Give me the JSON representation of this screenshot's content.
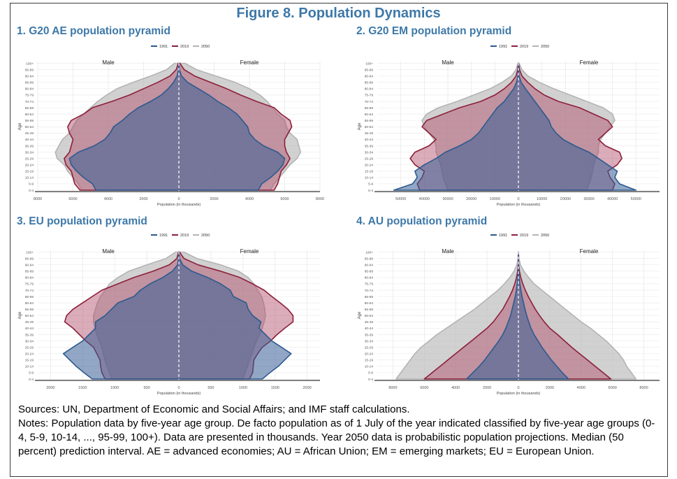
{
  "figure_title": "Figure 8. Population Dynamics",
  "colors": {
    "title": "#3d78a8",
    "y1991": "#2e5a8f",
    "y2019": "#8c1f3a",
    "y2050": "#b4b4b4"
  },
  "chart_data": [
    {
      "type": "area",
      "panel_title": "1. G20 AE population pyramid",
      "legend": [
        "1991",
        "2019",
        "2050"
      ],
      "male_label": "Male",
      "female_label": "Female",
      "xlabel": "Population (in thousands)",
      "ylabel": "Age",
      "age_groups": [
        "0-4",
        "5-9",
        "10-14",
        "15-19",
        "20-24",
        "25-29",
        "30-34",
        "35-39",
        "40-44",
        "45-49",
        "50-54",
        "55-59",
        "60-64",
        "65-69",
        "70-74",
        "75-79",
        "80-84",
        "85-89",
        "90-94",
        "95-99",
        "100+"
      ],
      "xlim": [
        -8000,
        8000
      ],
      "xticks": [
        "8000",
        "6000",
        "4000",
        "2000",
        "0",
        "2000",
        "4000",
        "6000",
        "8000"
      ],
      "xtick_values": [
        -8000,
        -6000,
        -4000,
        -2000,
        0,
        2000,
        4000,
        6000,
        8000
      ],
      "series": [
        {
          "name": "2050",
          "male": [
            5500,
            5700,
            6000,
            6300,
            6500,
            6900,
            7000,
            6800,
            6600,
            6200,
            6000,
            5800,
            5400,
            5000,
            4600,
            4100,
            3500,
            2600,
            1600,
            700,
            250
          ],
          "female": [
            5200,
            5400,
            5700,
            6000,
            6300,
            6700,
            6900,
            6800,
            6700,
            6300,
            6100,
            6000,
            5600,
            5300,
            5000,
            4600,
            4000,
            3200,
            2100,
            1000,
            350
          ]
        },
        {
          "name": "2019",
          "male": [
            5600,
            5900,
            6000,
            6100,
            6400,
            6500,
            6200,
            6100,
            6000,
            6200,
            6300,
            6100,
            5400,
            4900,
            3800,
            2800,
            2000,
            1200,
            500,
            150,
            30
          ],
          "female": [
            5400,
            5600,
            5700,
            5800,
            6100,
            6300,
            6100,
            6000,
            6000,
            6200,
            6400,
            6300,
            5800,
            5400,
            4400,
            3500,
            2700,
            1800,
            900,
            300,
            60
          ]
        },
        {
          "name": "1991",
          "male": [
            4700,
            4900,
            5400,
            5800,
            6100,
            6200,
            5700,
            4800,
            4200,
            3900,
            3700,
            3200,
            2800,
            2300,
            1600,
            1000,
            600,
            300,
            100,
            20,
            0
          ],
          "female": [
            4500,
            4700,
            5200,
            5600,
            5900,
            6000,
            5600,
            4800,
            4300,
            4000,
            3900,
            3600,
            3300,
            2800,
            2200,
            1700,
            1100,
            500,
            150,
            30,
            0
          ]
        }
      ]
    },
    {
      "type": "area",
      "panel_title": "2. G20 EM population pyramid",
      "legend": [
        "1991",
        "2019",
        "2050"
      ],
      "male_label": "Male",
      "female_label": "Female",
      "xlabel": "Population (in thousands)",
      "ylabel": "Age",
      "age_groups": [
        "0-4",
        "5-9",
        "10-14",
        "15-19",
        "20-24",
        "25-29",
        "30-34",
        "35-39",
        "40-44",
        "45-49",
        "50-54",
        "55-59",
        "60-64",
        "65-69",
        "70-74",
        "75-79",
        "80-84",
        "85-89",
        "90-94",
        "95-99",
        "100+"
      ],
      "xlim": [
        -60000,
        60000
      ],
      "xticks": [
        "50000",
        "40000",
        "30000",
        "20000",
        "10000",
        "0",
        "10000",
        "20000",
        "30000",
        "40000",
        "50000"
      ],
      "xtick_values": [
        -50000,
        -40000,
        -30000,
        -20000,
        -10000,
        0,
        10000,
        20000,
        30000,
        40000,
        50000
      ],
      "series": [
        {
          "name": "2050",
          "male": [
            30000,
            31000,
            32000,
            32500,
            33000,
            34000,
            35000,
            35000,
            36000,
            38000,
            40000,
            41000,
            39000,
            34000,
            26000,
            19000,
            12000,
            7000,
            3000,
            1000,
            200
          ],
          "female": [
            29000,
            30000,
            31000,
            31500,
            32000,
            33000,
            34000,
            34000,
            35000,
            37000,
            39000,
            41000,
            40000,
            36000,
            29000,
            22000,
            15000,
            9000,
            4000,
            1500,
            300
          ]
        },
        {
          "name": "2019",
          "male": [
            42000,
            43000,
            41000,
            40000,
            44000,
            46000,
            44000,
            38000,
            35000,
            38000,
            41000,
            39000,
            32000,
            25000,
            16000,
            10000,
            6000,
            3000,
            1000,
            300,
            50
          ],
          "female": [
            40000,
            41000,
            39000,
            38000,
            42000,
            44000,
            43000,
            37000,
            34000,
            37000,
            40000,
            38000,
            32000,
            26000,
            17000,
            11000,
            7000,
            4000,
            1500,
            500,
            100
          ]
        },
        {
          "name": "1991",
          "male": [
            53000,
            45000,
            43000,
            44000,
            40000,
            35000,
            31000,
            25000,
            20000,
            17000,
            15000,
            13000,
            11000,
            9000,
            6000,
            4000,
            2000,
            800,
            200,
            50,
            10
          ],
          "female": [
            50000,
            43000,
            41000,
            42000,
            38000,
            34000,
            30000,
            24000,
            19000,
            16000,
            14000,
            13000,
            11000,
            9000,
            7000,
            5000,
            3000,
            1200,
            300,
            80,
            10
          ]
        }
      ]
    },
    {
      "type": "area",
      "panel_title": "3. EU population pyramid",
      "legend": [
        "1991",
        "2019",
        "2050"
      ],
      "male_label": "Male",
      "female_label": "Female",
      "xlabel": "Population (in thousands)",
      "ylabel": "Age",
      "age_groups": [
        "0-4",
        "5-9",
        "10-14",
        "15-19",
        "20-24",
        "25-29",
        "30-34",
        "35-39",
        "40-44",
        "45-49",
        "50-54",
        "55-59",
        "60-64",
        "65-69",
        "70-74",
        "75-79",
        "80-84",
        "85-89",
        "90-94",
        "95-99",
        "100+"
      ],
      "xlim": [
        -2200,
        2200
      ],
      "xticks": [
        "2000",
        "1500",
        "1000",
        "500",
        "0",
        "500",
        "1000",
        "1500",
        "2000"
      ],
      "xtick_values": [
        -2000,
        -1500,
        -1000,
        -500,
        0,
        500,
        1000,
        1500,
        2000
      ],
      "series": [
        {
          "name": "2050",
          "male": [
            1050,
            1080,
            1120,
            1150,
            1180,
            1200,
            1240,
            1280,
            1310,
            1330,
            1330,
            1300,
            1270,
            1220,
            1150,
            1080,
            950,
            780,
            500,
            200,
            50
          ],
          "female": [
            1000,
            1030,
            1070,
            1100,
            1140,
            1170,
            1210,
            1260,
            1300,
            1330,
            1350,
            1340,
            1320,
            1290,
            1230,
            1170,
            1080,
            930,
            650,
            280,
            80
          ]
        },
        {
          "name": "2019",
          "male": [
            1150,
            1200,
            1220,
            1230,
            1280,
            1330,
            1450,
            1550,
            1650,
            1780,
            1750,
            1650,
            1500,
            1350,
            1200,
            950,
            700,
            400,
            150,
            30,
            5
          ],
          "female": [
            1100,
            1150,
            1160,
            1170,
            1230,
            1300,
            1430,
            1530,
            1650,
            1780,
            1780,
            1700,
            1580,
            1450,
            1330,
            1150,
            950,
            650,
            300,
            80,
            10
          ]
        },
        {
          "name": "1991",
          "male": [
            1350,
            1480,
            1600,
            1700,
            1800,
            1650,
            1500,
            1400,
            1300,
            1300,
            1150,
            1050,
            950,
            700,
            600,
            450,
            250,
            100,
            20,
            5,
            0
          ],
          "female": [
            1300,
            1420,
            1550,
            1650,
            1750,
            1600,
            1450,
            1350,
            1250,
            1280,
            1150,
            1080,
            1050,
            850,
            800,
            650,
            450,
            200,
            60,
            10,
            0
          ]
        }
      ]
    },
    {
      "type": "area",
      "panel_title": "4. AU population pyramid",
      "legend": [
        "1991",
        "2019",
        "2050"
      ],
      "male_label": "Male",
      "female_label": "Female",
      "xlabel": "Population (in thousands)",
      "ylabel": "Age",
      "age_groups": [
        "0-4",
        "5-9",
        "10-14",
        "15-19",
        "20-24",
        "25-29",
        "30-34",
        "35-39",
        "40-44",
        "45-49",
        "50-54",
        "55-59",
        "60-64",
        "65-69",
        "70-74",
        "75-79",
        "80-84",
        "85-89",
        "90-94",
        "95-99",
        "100+"
      ],
      "xlim": [
        -9000,
        9000
      ],
      "xticks": [
        "8000",
        "6000",
        "4000",
        "2000",
        "0",
        "2000",
        "4000",
        "6000",
        "8000"
      ],
      "xtick_values": [
        -8000,
        -6000,
        -4000,
        -2000,
        0,
        2000,
        4000,
        6000,
        8000
      ],
      "series": [
        {
          "name": "2050",
          "male": [
            7800,
            7500,
            7200,
            6900,
            6600,
            6200,
            5700,
            5200,
            4600,
            4000,
            3400,
            2800,
            2300,
            1800,
            1300,
            900,
            550,
            280,
            100,
            25,
            5
          ],
          "female": [
            7500,
            7200,
            6900,
            6700,
            6400,
            6000,
            5600,
            5100,
            4600,
            4000,
            3500,
            3000,
            2500,
            2000,
            1500,
            1000,
            650,
            350,
            130,
            35,
            8
          ]
        },
        {
          "name": "2019",
          "male": [
            6000,
            5500,
            5000,
            4500,
            4000,
            3500,
            3000,
            2500,
            2000,
            1600,
            1300,
            1000,
            780,
            560,
            380,
            230,
            120,
            50,
            15,
            3,
            0
          ],
          "female": [
            5900,
            5400,
            4900,
            4400,
            3900,
            3400,
            2950,
            2500,
            2000,
            1650,
            1350,
            1080,
            850,
            630,
            440,
            280,
            150,
            65,
            20,
            4,
            0
          ]
        },
        {
          "name": "1991",
          "male": [
            3300,
            2900,
            2500,
            2150,
            1850,
            1550,
            1250,
            1000,
            800,
            650,
            500,
            400,
            300,
            200,
            130,
            80,
            40,
            15,
            4,
            1,
            0
          ],
          "female": [
            3200,
            2800,
            2450,
            2100,
            1800,
            1500,
            1250,
            1000,
            800,
            660,
            530,
            420,
            330,
            230,
            160,
            100,
            50,
            20,
            6,
            1,
            0
          ]
        }
      ]
    }
  ],
  "notes": {
    "sources": "Sources: UN, Department of Economic and Social Affairs; and IMF staff calculations.",
    "notes": "Notes: Population data by five-year age group. De facto population as of 1 July of the year indicated classified by five-year age groups (0-4, 5-9, 10-14, ..., 95-99, 100+). Data are presented in thousands. Year 2050 data is probabilistic population projections. Median (50 percent) prediction interval. AE = advanced economies; AU = African Union; EM = emerging markets; EU = European Union."
  }
}
